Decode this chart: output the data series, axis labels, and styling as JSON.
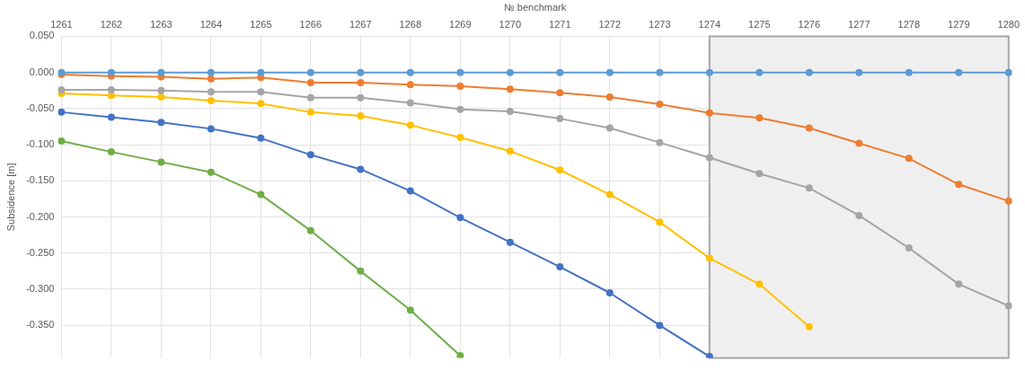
{
  "chart_data": {
    "type": "line",
    "xlabel": "№ benchmark",
    "ylabel": "Subsidence [m]",
    "categories": [
      "1261",
      "1262",
      "1263",
      "1264",
      "1265",
      "1266",
      "1267",
      "1268",
      "1269",
      "1270",
      "1271",
      "1272",
      "1273",
      "1274",
      "1275",
      "1276",
      "1277",
      "1278",
      "1279",
      "1280"
    ],
    "series": [
      {
        "color": "#5b9bd5",
        "values": [
          0,
          0,
          0,
          0,
          0,
          0,
          0,
          0,
          0,
          0,
          0,
          0,
          0,
          0,
          0,
          0,
          0,
          0,
          0,
          0
        ]
      },
      {
        "color": "#ed7d31",
        "values": [
          -0.003,
          -0.005,
          -0.006,
          -0.009,
          -0.007,
          -0.014,
          -0.014,
          -0.017,
          -0.019,
          -0.023,
          -0.028,
          -0.034,
          -0.044,
          -0.056,
          -0.063,
          -0.077,
          -0.098,
          -0.119,
          -0.155,
          -0.178
        ]
      },
      {
        "color": "#a5a5a5",
        "values": [
          -0.024,
          -0.024,
          -0.025,
          -0.027,
          -0.027,
          -0.035,
          -0.035,
          -0.042,
          -0.051,
          -0.054,
          -0.064,
          -0.077,
          -0.097,
          -0.118,
          -0.14,
          -0.16,
          -0.198,
          -0.243,
          -0.293,
          -0.323
        ]
      },
      {
        "color": "#ffc000",
        "values": [
          -0.029,
          -0.032,
          -0.034,
          -0.039,
          -0.043,
          -0.055,
          -0.06,
          -0.073,
          -0.09,
          -0.109,
          -0.135,
          -0.169,
          -0.207,
          -0.257,
          -0.293,
          -0.352,
          null,
          null,
          null,
          null
        ]
      },
      {
        "color": "#4472c4",
        "values": [
          -0.055,
          -0.062,
          -0.069,
          -0.078,
          -0.091,
          -0.114,
          -0.134,
          -0.164,
          -0.201,
          -0.235,
          -0.269,
          -0.305,
          -0.35,
          -0.393,
          null,
          null,
          null,
          null,
          null,
          null
        ]
      },
      {
        "color": "#70ad47",
        "values": [
          -0.095,
          -0.11,
          -0.124,
          -0.138,
          -0.169,
          -0.219,
          -0.275,
          -0.329,
          -0.392,
          null,
          null,
          null,
          null,
          null,
          null,
          null,
          null,
          null,
          null,
          null
        ]
      }
    ],
    "ylim": [
      -0.395,
      0.05
    ],
    "yticks": [
      {
        "value": 0.05,
        "label": "0.050"
      },
      {
        "value": 0,
        "label": "0.000"
      },
      {
        "value": -0.05,
        "label": "-0.050"
      },
      {
        "value": -0.1,
        "label": "-0.100"
      },
      {
        "value": -0.15,
        "label": "-0.150"
      },
      {
        "value": -0.2,
        "label": "-0.200"
      },
      {
        "value": -0.25,
        "label": "-0.250"
      },
      {
        "value": -0.3,
        "label": "-0.300"
      },
      {
        "value": -0.35,
        "label": "-0.350"
      }
    ],
    "bands": [
      {
        "axis": "x",
        "from": "1274",
        "to": "1280",
        "color": "#efefef"
      }
    ],
    "grid": true,
    "marker": "circle",
    "line_style": "solid",
    "legend": false
  }
}
